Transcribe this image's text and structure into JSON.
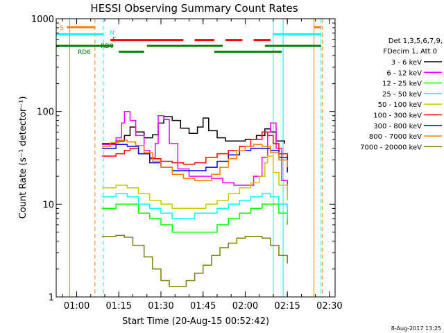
{
  "chart_data": {
    "type": "line",
    "title": "HESSI Observing Summary Count Rates",
    "ylabel": "Count Rate (s⁻¹ detector⁻¹)",
    "xlabel": "Start Time (20-Aug-15 00:52:42)",
    "y_scale": "log",
    "ylim": [
      1,
      1000
    ],
    "xlim": [
      "00:52:42",
      "02:32:00"
    ],
    "x_ticks": [
      "01:00",
      "01:15",
      "01:30",
      "01:45",
      "02:00",
      "02:15",
      "02:30"
    ],
    "y_ticks": [
      "1",
      "10",
      "100",
      "1000"
    ],
    "legend_header": [
      "Det 1,3,5,6,7,9,",
      "FDecim 1, Att 0"
    ],
    "legend_position": "right",
    "footer_date": "8-Aug-2017 13:25",
    "series": [
      {
        "name": "3 - 6 keV",
        "color": "#000000",
        "points": [
          [
            "01:09",
            45
          ],
          [
            "01:14",
            48
          ],
          [
            "01:17",
            55
          ],
          [
            "01:19",
            68
          ],
          [
            "01:21",
            60
          ],
          [
            "01:24",
            52
          ],
          [
            "01:27",
            56
          ],
          [
            "01:29",
            75
          ],
          [
            "01:31",
            88
          ],
          [
            "01:34",
            80
          ],
          [
            "01:37",
            66
          ],
          [
            "01:40",
            58
          ],
          [
            "01:43",
            68
          ],
          [
            "01:45",
            85
          ],
          [
            "01:47",
            62
          ],
          [
            "01:50",
            52
          ],
          [
            "01:53",
            48
          ],
          [
            "01:56",
            48
          ],
          [
            "02:00",
            50
          ],
          [
            "02:04",
            55
          ],
          [
            "02:07",
            65
          ],
          [
            "02:09",
            60
          ],
          [
            "02:11",
            48
          ],
          [
            "02:14",
            45
          ]
        ]
      },
      {
        "name": "6 - 12 keV",
        "color": "#ff00ff",
        "points": [
          [
            "01:09",
            44
          ],
          [
            "01:14",
            52
          ],
          [
            "01:16",
            75
          ],
          [
            "01:17",
            100
          ],
          [
            "01:19",
            80
          ],
          [
            "01:21",
            55
          ],
          [
            "01:24",
            38
          ],
          [
            "01:26",
            32
          ],
          [
            "01:28",
            45
          ],
          [
            "01:29",
            90
          ],
          [
            "01:31",
            82
          ],
          [
            "01:33",
            45
          ],
          [
            "01:36",
            24
          ],
          [
            "01:40",
            20
          ],
          [
            "01:44",
            20
          ],
          [
            "01:48",
            19
          ],
          [
            "01:52",
            17
          ],
          [
            "01:56",
            16
          ],
          [
            "02:00",
            16
          ],
          [
            "02:03",
            20
          ],
          [
            "02:06",
            32
          ],
          [
            "02:08",
            60
          ],
          [
            "02:09",
            75
          ],
          [
            "02:11",
            40
          ],
          [
            "02:13",
            18
          ],
          [
            "02:15",
            12
          ]
        ]
      },
      {
        "name": "12 - 25 keV",
        "color": "#00ff00",
        "points": [
          [
            "01:09",
            9
          ],
          [
            "01:14",
            10
          ],
          [
            "01:18",
            10
          ],
          [
            "01:22",
            8
          ],
          [
            "01:26",
            7
          ],
          [
            "01:30",
            6
          ],
          [
            "01:34",
            5
          ],
          [
            "01:38",
            5
          ],
          [
            "01:42",
            5
          ],
          [
            "01:46",
            5
          ],
          [
            "01:50",
            6
          ],
          [
            "01:54",
            7
          ],
          [
            "01:58",
            8
          ],
          [
            "02:02",
            9
          ],
          [
            "02:06",
            10
          ],
          [
            "02:09",
            10
          ],
          [
            "02:12",
            8
          ],
          [
            "02:15",
            6
          ]
        ]
      },
      {
        "name": "25 - 50 keV",
        "color": "#00ffff",
        "points": [
          [
            "01:09",
            12
          ],
          [
            "01:14",
            13
          ],
          [
            "01:18",
            12
          ],
          [
            "01:22",
            10
          ],
          [
            "01:26",
            9
          ],
          [
            "01:30",
            8
          ],
          [
            "01:34",
            7
          ],
          [
            "01:38",
            7
          ],
          [
            "01:42",
            8
          ],
          [
            "01:46",
            8
          ],
          [
            "01:50",
            9
          ],
          [
            "01:54",
            10
          ],
          [
            "01:58",
            11
          ],
          [
            "02:02",
            12
          ],
          [
            "02:06",
            13
          ],
          [
            "02:09",
            12
          ],
          [
            "02:12",
            10
          ],
          [
            "02:15",
            7
          ]
        ]
      },
      {
        "name": "50 - 100 keV",
        "color": "#c8c800",
        "points": [
          [
            "01:09",
            15
          ],
          [
            "01:14",
            16
          ],
          [
            "01:18",
            15
          ],
          [
            "01:22",
            13
          ],
          [
            "01:26",
            11
          ],
          [
            "01:30",
            10
          ],
          [
            "01:34",
            9
          ],
          [
            "01:38",
            9
          ],
          [
            "01:42",
            9
          ],
          [
            "01:46",
            10
          ],
          [
            "01:50",
            11
          ],
          [
            "01:54",
            13
          ],
          [
            "01:58",
            15
          ],
          [
            "02:02",
            17
          ],
          [
            "02:05",
            20
          ],
          [
            "02:07",
            28
          ],
          [
            "02:08",
            33
          ],
          [
            "02:10",
            22
          ],
          [
            "02:12",
            16
          ],
          [
            "02:15",
            11
          ]
        ]
      },
      {
        "name": "100 - 300 keV",
        "color": "#ff0000",
        "points": [
          [
            "01:09",
            33
          ],
          [
            "01:14",
            35
          ],
          [
            "01:17",
            38
          ],
          [
            "01:19",
            40
          ],
          [
            "01:22",
            35
          ],
          [
            "01:26",
            31
          ],
          [
            "01:30",
            29
          ],
          [
            "01:34",
            28
          ],
          [
            "01:38",
            27
          ],
          [
            "01:42",
            28
          ],
          [
            "01:46",
            32
          ],
          [
            "01:50",
            35
          ],
          [
            "01:54",
            38
          ],
          [
            "01:58",
            42
          ],
          [
            "02:02",
            50
          ],
          [
            "02:06",
            60
          ],
          [
            "02:08",
            55
          ],
          [
            "02:10",
            45
          ],
          [
            "02:12",
            35
          ],
          [
            "02:15",
            24
          ]
        ]
      },
      {
        "name": "300 - 800 keV",
        "color": "#0000ff",
        "points": [
          [
            "01:09",
            40
          ],
          [
            "01:14",
            44
          ],
          [
            "01:18",
            42
          ],
          [
            "01:22",
            35
          ],
          [
            "01:26",
            28
          ],
          [
            "01:30",
            25
          ],
          [
            "01:34",
            23
          ],
          [
            "01:38",
            23
          ],
          [
            "01:42",
            23
          ],
          [
            "01:46",
            25
          ],
          [
            "01:50",
            29
          ],
          [
            "01:54",
            34
          ],
          [
            "01:58",
            38
          ],
          [
            "02:02",
            40
          ],
          [
            "02:06",
            40
          ],
          [
            "02:09",
            38
          ],
          [
            "02:12",
            32
          ],
          [
            "02:15",
            22
          ]
        ]
      },
      {
        "name": "800 - 7000 keV",
        "color": "#ff8000",
        "points": [
          [
            "01:09",
            42
          ],
          [
            "01:12",
            46
          ],
          [
            "01:15",
            49
          ],
          [
            "01:18",
            47
          ],
          [
            "01:21",
            43
          ],
          [
            "01:24",
            36
          ],
          [
            "01:27",
            29
          ],
          [
            "01:30",
            25
          ],
          [
            "01:34",
            21
          ],
          [
            "01:38",
            19
          ],
          [
            "01:42",
            18
          ],
          [
            "01:45",
            18
          ],
          [
            "01:48",
            21
          ],
          [
            "01:51",
            25
          ],
          [
            "01:54",
            31
          ],
          [
            "01:57",
            38
          ],
          [
            "02:00",
            42
          ],
          [
            "02:03",
            44
          ],
          [
            "02:06",
            42
          ],
          [
            "02:09",
            36
          ],
          [
            "02:12",
            30
          ],
          [
            "02:15",
            25
          ]
        ]
      },
      {
        "name": "7000 - 20000 keV",
        "color": "#808000",
        "points": [
          [
            "01:09",
            4.5
          ],
          [
            "01:14",
            4.6
          ],
          [
            "01:17",
            4.4
          ],
          [
            "01:20",
            3.6
          ],
          [
            "01:24",
            2.7
          ],
          [
            "01:27",
            2.0
          ],
          [
            "01:30",
            1.5
          ],
          [
            "01:33",
            1.3
          ],
          [
            "01:36",
            1.3
          ],
          [
            "01:39",
            1.5
          ],
          [
            "01:42",
            1.8
          ],
          [
            "01:45",
            2.2
          ],
          [
            "01:48",
            2.8
          ],
          [
            "01:51",
            3.4
          ],
          [
            "01:54",
            3.8
          ],
          [
            "01:57",
            4.3
          ],
          [
            "02:00",
            4.5
          ],
          [
            "02:03",
            4.5
          ],
          [
            "02:06",
            4.3
          ],
          [
            "02:09",
            3.6
          ],
          [
            "02:12",
            2.8
          ],
          [
            "02:15",
            2.3
          ]
        ]
      }
    ],
    "vertical_lines": [
      {
        "time": "00:57:30",
        "color": "#ff8000",
        "style": "solid"
      },
      {
        "time": "01:06:30",
        "color": "#ff8000",
        "style": "dashed"
      },
      {
        "time": "01:09:30",
        "color": "#00ffff",
        "style": "dashed"
      },
      {
        "time": "02:10:00",
        "color": "#00ffff",
        "style": "solid"
      },
      {
        "time": "02:13:30",
        "color": "#00ffff",
        "style": "solid"
      },
      {
        "time": "02:24:30",
        "color": "#ff8000",
        "style": "solid"
      },
      {
        "time": "02:27:00",
        "color": "#00ffff",
        "style": "dashed"
      },
      {
        "time": "02:27:30",
        "color": "#ff8000",
        "style": "dashed"
      }
    ],
    "flag_bars": [
      {
        "label": "S",
        "color": "#ff8000",
        "level": 810,
        "segments": [
          [
            "00:56:30",
            "01:06:30"
          ],
          [
            "02:24:30",
            "02:27:00"
          ]
        ]
      },
      {
        "label": "N",
        "color": "#00ffff",
        "level": 680,
        "segments": [
          [
            "00:52:42",
            "01:09:30"
          ],
          [
            "02:10:00",
            "02:27:00"
          ]
        ]
      },
      {
        "label": "F",
        "color": "#ff0000",
        "level": 590,
        "segments": [
          [
            "01:12:00",
            "01:38:00"
          ],
          [
            "01:42:00",
            "01:49:00"
          ],
          [
            "01:53:00",
            "01:59:00"
          ],
          [
            "02:03:00",
            "02:09:00"
          ]
        ]
      },
      {
        "label": "RD0",
        "color": "#008000",
        "level": 510,
        "segments": [
          [
            "00:52:42",
            "01:13:00"
          ],
          [
            "01:25:00",
            "01:52:00"
          ],
          [
            "02:07:00",
            "02:27:00"
          ]
        ]
      },
      {
        "label": "RD6",
        "color": "#008000",
        "level": 440,
        "segments": [
          [
            "01:15:00",
            "01:24:00"
          ],
          [
            "01:49:00",
            "02:13:00"
          ]
        ]
      }
    ]
  }
}
